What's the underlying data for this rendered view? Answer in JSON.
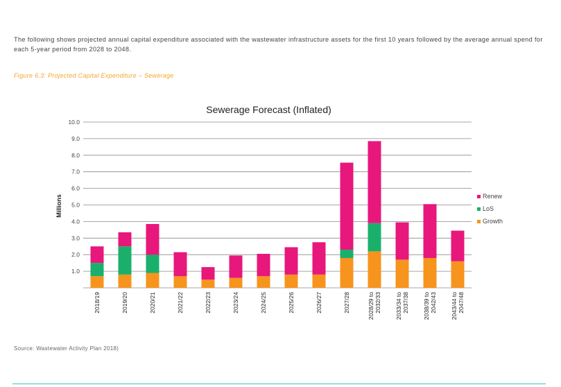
{
  "intro_text": "The following shows projected annual capital expenditure associated with the wastewater infrastructure assets for the first 10 years followed by the average annual spend for each 5-year period from 2028 to 2048.",
  "figure_caption": "Figure 6.3: Projected Capital Expenditure – Sewerage",
  "source_text": "Source: Wastewater Activity Plan 2018)",
  "chart_data": {
    "type": "bar",
    "stacked": true,
    "title": "Sewerage Forecast (Inflated)",
    "xlabel": "",
    "ylabel": "Millions",
    "ylim": [
      0,
      10
    ],
    "yticks": [
      "10.0",
      "9.0",
      "8.0",
      "7.0",
      "6.0",
      "5.0",
      "4.0",
      "3.0",
      "2.0",
      "1.0"
    ],
    "grid": true,
    "legend_position": "right",
    "categories": [
      [
        "2018/19"
      ],
      [
        "2019/20"
      ],
      [
        "2020/21"
      ],
      [
        "2021/22"
      ],
      [
        "2022/23"
      ],
      [
        "2023/24"
      ],
      [
        "2024/25"
      ],
      [
        "2025/26"
      ],
      [
        "2026/27"
      ],
      [
        "2027/28"
      ],
      [
        "2028/29 to",
        "2032/33"
      ],
      [
        "2033/34 to",
        "2037/38"
      ],
      [
        "2038/39 to",
        "2042/43"
      ],
      [
        "2043/44 to",
        "2047/48"
      ]
    ],
    "series": [
      {
        "name": "Growth",
        "color": "#f7941d",
        "values": [
          0.7,
          0.8,
          0.9,
          0.7,
          0.5,
          0.6,
          0.7,
          0.8,
          0.8,
          1.8,
          2.2,
          1.7,
          1.8,
          1.6
        ]
      },
      {
        "name": "LoS",
        "color": "#1ab06b",
        "values": [
          0.8,
          1.7,
          1.1,
          0.0,
          0.0,
          0.0,
          0.0,
          0.0,
          0.0,
          0.5,
          1.7,
          0.0,
          0.0,
          0.0
        ]
      },
      {
        "name": "Renew",
        "color": "#e8177c",
        "values": [
          1.0,
          0.85,
          1.85,
          1.45,
          0.75,
          1.35,
          1.35,
          1.65,
          1.95,
          5.25,
          4.95,
          2.25,
          3.25,
          1.85
        ]
      }
    ],
    "legend_order": [
      "Renew",
      "LoS",
      "Growth"
    ]
  }
}
